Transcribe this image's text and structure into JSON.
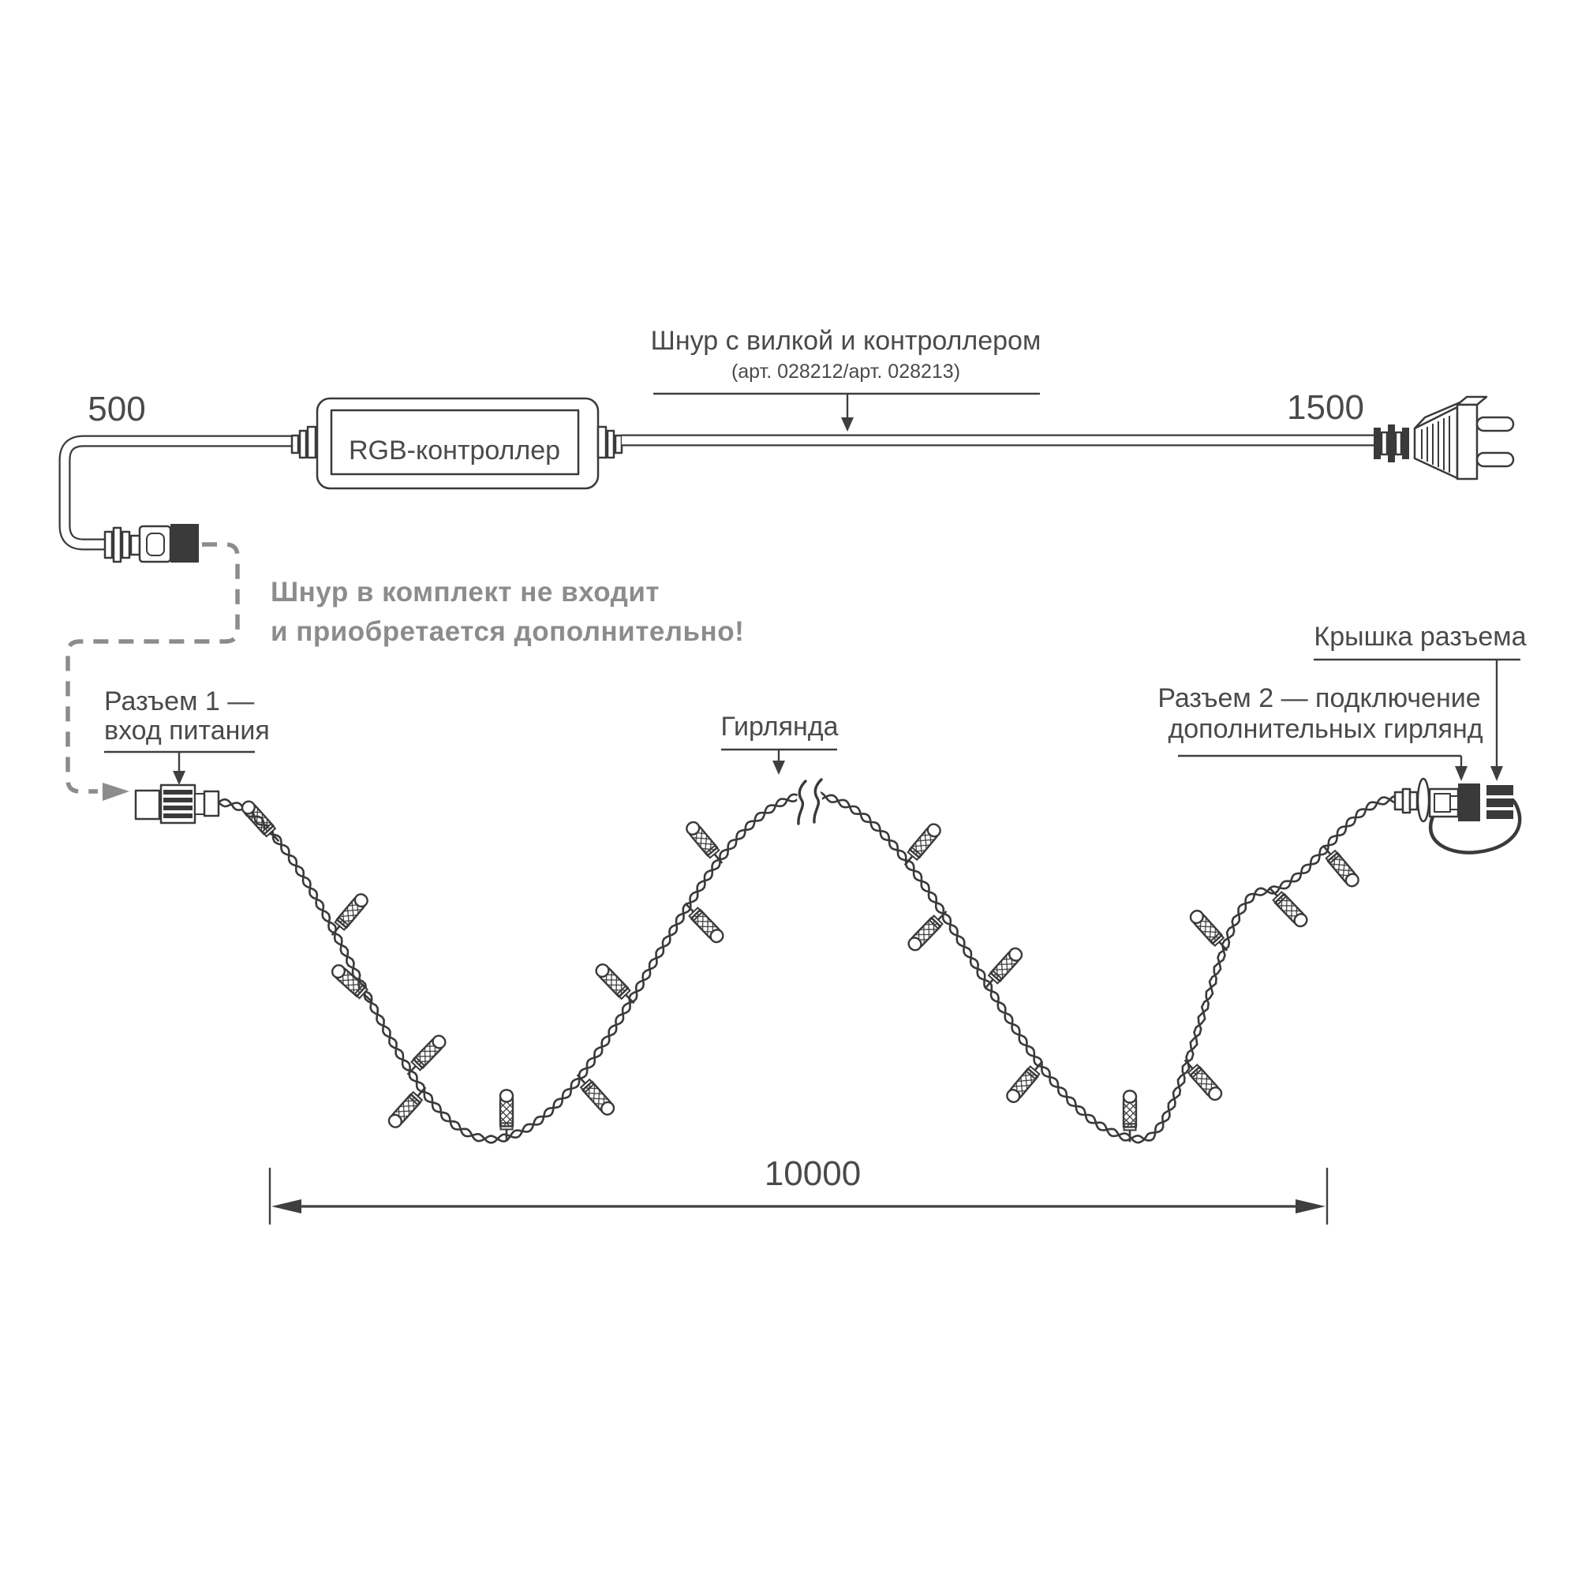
{
  "page": {
    "background": "#ffffff"
  },
  "colors": {
    "line": "#3a3a3a",
    "text": "#4a4a4a",
    "muted": "#8c8c8c"
  },
  "cord_section": {
    "title_line1": "Шнур с вилкой и контроллером",
    "title_line2": "(арт. 028212/арт. 028213)",
    "length_left_mm": "500",
    "length_right_mm": "1500",
    "controller_label": "RGB-контроллер"
  },
  "note": {
    "line1": "Шнур в комплект не входит",
    "line2": "и приобретается дополнительно!"
  },
  "labels": {
    "connector1_line1": "Разъем 1 —",
    "connector1_line2": "вход питания",
    "garland": "Гирлянда",
    "connector_cap": "Крышка разъема",
    "connector2_line1": "Разъем 2 — подключение",
    "connector2_line2": "дополнительных гирлянд"
  },
  "dimension": {
    "garland_length_mm": "10000"
  }
}
